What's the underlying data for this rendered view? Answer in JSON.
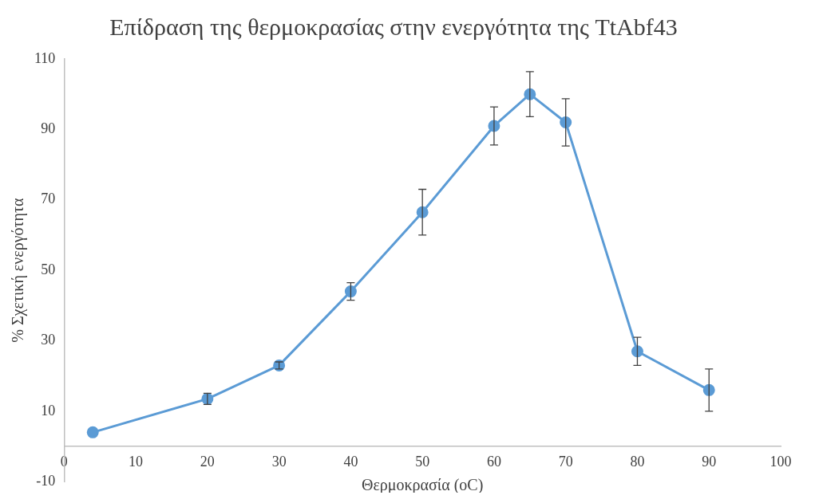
{
  "chart_data": {
    "type": "line",
    "title": "Επίδραση της θερμοκρασίας στην ενεργότητα της TtAbf43",
    "xlabel": "Θερμοκρασία (oC)",
    "ylabel": "% Σχετική ενεργότητα",
    "x": [
      4,
      20,
      30,
      40,
      50,
      60,
      65,
      70,
      80,
      90
    ],
    "series": [
      {
        "color": "#5b9bd5",
        "values": [
          4,
          13.5,
          23,
          44,
          66.5,
          91,
          100,
          92,
          27,
          16
        ],
        "errors": [
          null,
          1.6,
          1,
          2.5,
          6.5,
          5.4,
          6.4,
          6.7,
          4,
          6
        ]
      }
    ],
    "xlim": [
      0,
      100
    ],
    "xticks": [
      0,
      10,
      20,
      30,
      40,
      50,
      60,
      70,
      80,
      90,
      100
    ],
    "ylim": [
      -10,
      110
    ],
    "yticks": [
      -10,
      10,
      30,
      50,
      70,
      90,
      110
    ],
    "grid": false,
    "legend": false,
    "marker": "circle",
    "line_style": "solid"
  }
}
